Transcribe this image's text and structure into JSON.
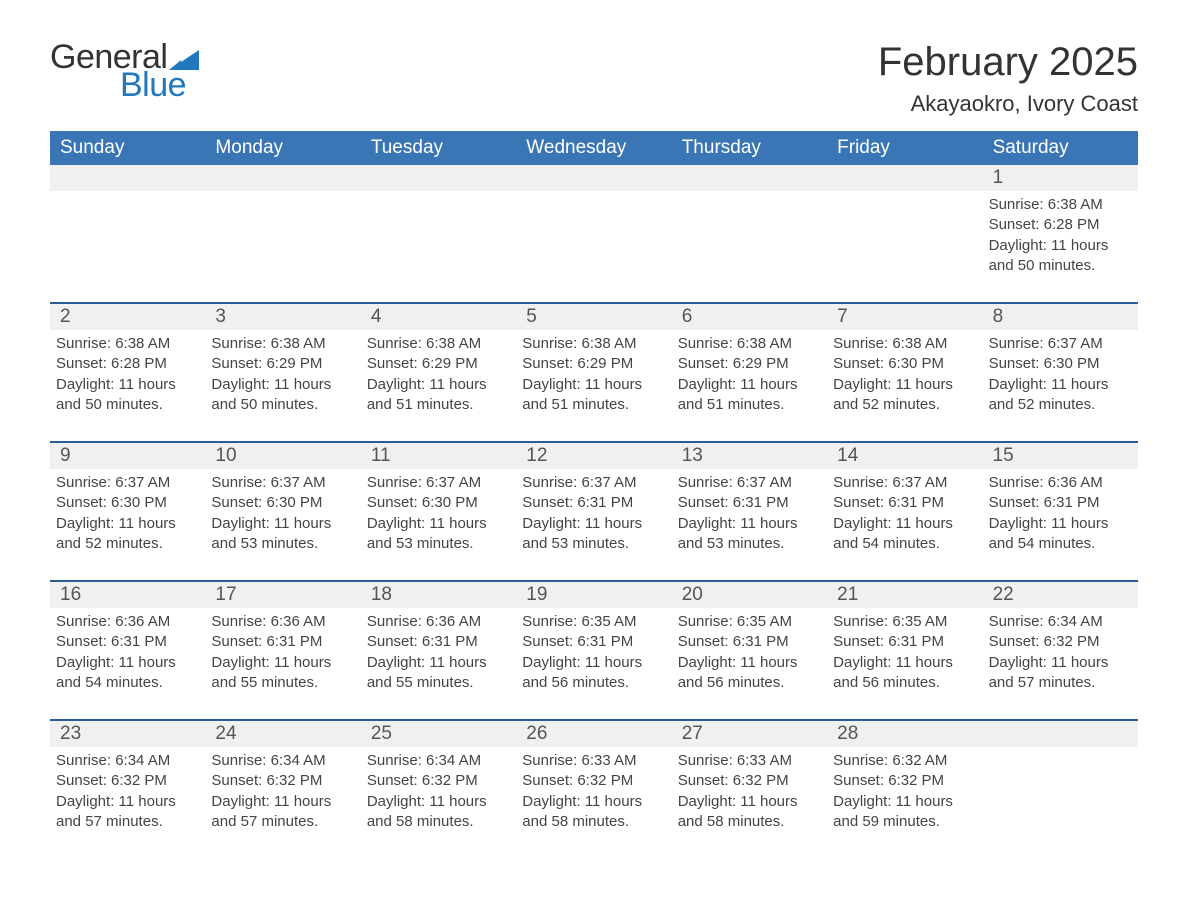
{
  "logo": {
    "word1": "General",
    "word2": "Blue",
    "flag_color": "#2178bd"
  },
  "title": "February 2025",
  "location": "Akayaokro, Ivory Coast",
  "colors": {
    "header_bg": "#3a76b6",
    "row_border": "#2a5d96",
    "day_bg": "#f0f0f0",
    "text": "#333333",
    "logo_blue": "#2178bd"
  },
  "weekdays": [
    "Sunday",
    "Monday",
    "Tuesday",
    "Wednesday",
    "Thursday",
    "Friday",
    "Saturday"
  ],
  "weeks": [
    [
      null,
      null,
      null,
      null,
      null,
      null,
      {
        "d": "1",
        "sunrise": "6:38 AM",
        "sunset": "6:28 PM",
        "daylight": "11 hours and 50 minutes."
      }
    ],
    [
      {
        "d": "2",
        "sunrise": "6:38 AM",
        "sunset": "6:28 PM",
        "daylight": "11 hours and 50 minutes."
      },
      {
        "d": "3",
        "sunrise": "6:38 AM",
        "sunset": "6:29 PM",
        "daylight": "11 hours and 50 minutes."
      },
      {
        "d": "4",
        "sunrise": "6:38 AM",
        "sunset": "6:29 PM",
        "daylight": "11 hours and 51 minutes."
      },
      {
        "d": "5",
        "sunrise": "6:38 AM",
        "sunset": "6:29 PM",
        "daylight": "11 hours and 51 minutes."
      },
      {
        "d": "6",
        "sunrise": "6:38 AM",
        "sunset": "6:29 PM",
        "daylight": "11 hours and 51 minutes."
      },
      {
        "d": "7",
        "sunrise": "6:38 AM",
        "sunset": "6:30 PM",
        "daylight": "11 hours and 52 minutes."
      },
      {
        "d": "8",
        "sunrise": "6:37 AM",
        "sunset": "6:30 PM",
        "daylight": "11 hours and 52 minutes."
      }
    ],
    [
      {
        "d": "9",
        "sunrise": "6:37 AM",
        "sunset": "6:30 PM",
        "daylight": "11 hours and 52 minutes."
      },
      {
        "d": "10",
        "sunrise": "6:37 AM",
        "sunset": "6:30 PM",
        "daylight": "11 hours and 53 minutes."
      },
      {
        "d": "11",
        "sunrise": "6:37 AM",
        "sunset": "6:30 PM",
        "daylight": "11 hours and 53 minutes."
      },
      {
        "d": "12",
        "sunrise": "6:37 AM",
        "sunset": "6:31 PM",
        "daylight": "11 hours and 53 minutes."
      },
      {
        "d": "13",
        "sunrise": "6:37 AM",
        "sunset": "6:31 PM",
        "daylight": "11 hours and 53 minutes."
      },
      {
        "d": "14",
        "sunrise": "6:37 AM",
        "sunset": "6:31 PM",
        "daylight": "11 hours and 54 minutes."
      },
      {
        "d": "15",
        "sunrise": "6:36 AM",
        "sunset": "6:31 PM",
        "daylight": "11 hours and 54 minutes."
      }
    ],
    [
      {
        "d": "16",
        "sunrise": "6:36 AM",
        "sunset": "6:31 PM",
        "daylight": "11 hours and 54 minutes."
      },
      {
        "d": "17",
        "sunrise": "6:36 AM",
        "sunset": "6:31 PM",
        "daylight": "11 hours and 55 minutes."
      },
      {
        "d": "18",
        "sunrise": "6:36 AM",
        "sunset": "6:31 PM",
        "daylight": "11 hours and 55 minutes."
      },
      {
        "d": "19",
        "sunrise": "6:35 AM",
        "sunset": "6:31 PM",
        "daylight": "11 hours and 56 minutes."
      },
      {
        "d": "20",
        "sunrise": "6:35 AM",
        "sunset": "6:31 PM",
        "daylight": "11 hours and 56 minutes."
      },
      {
        "d": "21",
        "sunrise": "6:35 AM",
        "sunset": "6:31 PM",
        "daylight": "11 hours and 56 minutes."
      },
      {
        "d": "22",
        "sunrise": "6:34 AM",
        "sunset": "6:32 PM",
        "daylight": "11 hours and 57 minutes."
      }
    ],
    [
      {
        "d": "23",
        "sunrise": "6:34 AM",
        "sunset": "6:32 PM",
        "daylight": "11 hours and 57 minutes."
      },
      {
        "d": "24",
        "sunrise": "6:34 AM",
        "sunset": "6:32 PM",
        "daylight": "11 hours and 57 minutes."
      },
      {
        "d": "25",
        "sunrise": "6:34 AM",
        "sunset": "6:32 PM",
        "daylight": "11 hours and 58 minutes."
      },
      {
        "d": "26",
        "sunrise": "6:33 AM",
        "sunset": "6:32 PM",
        "daylight": "11 hours and 58 minutes."
      },
      {
        "d": "27",
        "sunrise": "6:33 AM",
        "sunset": "6:32 PM",
        "daylight": "11 hours and 58 minutes."
      },
      {
        "d": "28",
        "sunrise": "6:32 AM",
        "sunset": "6:32 PM",
        "daylight": "11 hours and 59 minutes."
      },
      null
    ]
  ],
  "labels": {
    "sunrise": "Sunrise:",
    "sunset": "Sunset:",
    "daylight": "Daylight:"
  }
}
